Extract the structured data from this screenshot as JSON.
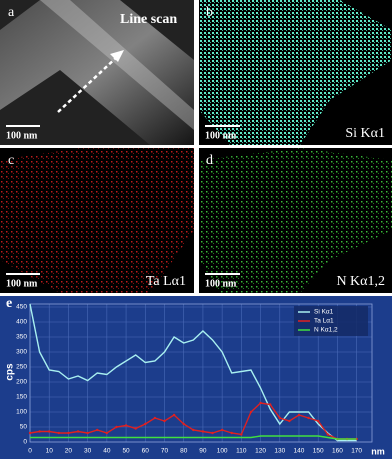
{
  "panels": [
    {
      "label": "a",
      "annotation": "Line scan",
      "scale": "100 nm"
    },
    {
      "label": "b",
      "annotation": "Si Kα1",
      "scale": "100 nm"
    },
    {
      "label": "c",
      "annotation": "Ta Lα1",
      "scale": "100 nm"
    },
    {
      "label": "d",
      "annotation": "N Kα1,2",
      "scale": "100 nm"
    }
  ],
  "chart_data": {
    "type": "line",
    "panel_label": "e",
    "y_label": "cps",
    "x_label": "nm",
    "x": [
      0,
      5,
      10,
      15,
      20,
      25,
      30,
      35,
      40,
      45,
      50,
      55,
      60,
      65,
      70,
      75,
      80,
      85,
      90,
      95,
      100,
      105,
      110,
      115,
      120,
      125,
      130,
      135,
      140,
      145,
      150,
      155,
      160,
      165,
      170
    ],
    "series": [
      {
        "name": "Si Kα1",
        "color": "#a8f0f0",
        "values": [
          460,
          300,
          240,
          235,
          210,
          220,
          205,
          230,
          225,
          250,
          270,
          290,
          265,
          270,
          300,
          350,
          330,
          340,
          370,
          340,
          300,
          230,
          235,
          240,
          180,
          110,
          60,
          100,
          100,
          100,
          60,
          30,
          5,
          5,
          5
        ]
      },
      {
        "name": "Ta Lα1",
        "color": "#e02020",
        "values": [
          30,
          35,
          35,
          30,
          30,
          35,
          30,
          40,
          30,
          50,
          55,
          45,
          60,
          80,
          70,
          90,
          60,
          40,
          35,
          30,
          40,
          30,
          25,
          100,
          130,
          125,
          80,
          70,
          90,
          80,
          70,
          25,
          10,
          10,
          10
        ]
      },
      {
        "name": "N Kα1,2",
        "color": "#40e040",
        "values": [
          15,
          15,
          15,
          15,
          15,
          15,
          15,
          15,
          15,
          15,
          15,
          15,
          15,
          15,
          15,
          15,
          15,
          15,
          15,
          15,
          15,
          15,
          15,
          15,
          20,
          20,
          20,
          20,
          20,
          20,
          20,
          15,
          10,
          10,
          10
        ]
      }
    ],
    "xlim": [
      0,
      178
    ],
    "ylim": [
      0,
      460
    ],
    "xticks": [
      0,
      10,
      20,
      30,
      40,
      50,
      60,
      70,
      80,
      90,
      100,
      110,
      120,
      130,
      140,
      150,
      160,
      170
    ],
    "yticks": [
      0,
      50,
      100,
      150,
      200,
      250,
      300,
      350,
      400,
      450
    ],
    "grid": true,
    "legend": "upper right"
  }
}
